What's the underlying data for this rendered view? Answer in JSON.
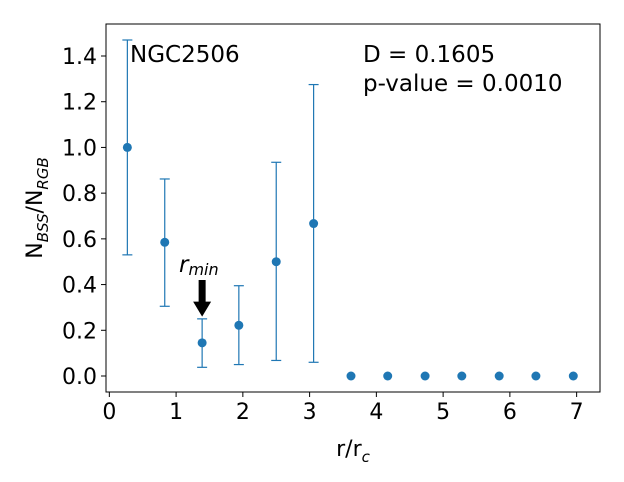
{
  "chart_data": {
    "type": "scatter",
    "title": "",
    "xlabel": "r/r",
    "xlabel_sub": "c",
    "ylabel_main": "N",
    "ylabel_sub1": "BSS",
    "ylabel_mid": "/N",
    "ylabel_sub2": "RGB",
    "xlim": [
      -0.05,
      7.35
    ],
    "ylim": [
      -0.07,
      1.54
    ],
    "xticks": [
      0,
      1,
      2,
      3,
      4,
      5,
      6,
      7
    ],
    "xtick_labels": [
      "0",
      "1",
      "2",
      "3",
      "4",
      "5",
      "6",
      "7"
    ],
    "yticks": [
      0.0,
      0.2,
      0.4,
      0.6,
      0.8,
      1.0,
      1.2,
      1.4
    ],
    "ytick_labels": [
      "0.0",
      "0.2",
      "0.4",
      "0.6",
      "0.8",
      "1.0",
      "1.2",
      "1.4"
    ],
    "grid": false,
    "color": "#1f77b4",
    "series": [
      {
        "x": [
          0.27,
          0.83,
          1.39,
          1.94,
          2.5,
          3.06,
          3.62,
          4.17,
          4.73,
          5.28,
          5.84,
          6.39,
          6.95
        ],
        "y": [
          1.0,
          0.585,
          0.145,
          0.222,
          0.5,
          0.667,
          0.0,
          0.0,
          0.0,
          0.0,
          0.0,
          0.0,
          0.0
        ],
        "y_err_low": [
          0.53,
          0.305,
          0.038,
          0.05,
          0.068,
          0.06,
          null,
          null,
          null,
          null,
          null,
          null,
          null
        ],
        "y_err_high": [
          1.47,
          0.862,
          0.25,
          0.395,
          0.935,
          1.275,
          null,
          null,
          null,
          null,
          null,
          null,
          null
        ]
      }
    ],
    "annotations": {
      "cluster_name": "NGC2506",
      "d_stat": "D = 0.1605",
      "p_value": "p-value = 0.0010",
      "rmin_main": "r",
      "rmin_sub": "min",
      "arrow_x": 1.39,
      "arrow_y_top": 0.42,
      "arrow_y_bottom": 0.26
    }
  }
}
